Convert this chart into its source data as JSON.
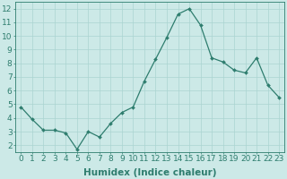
{
  "x": [
    0,
    1,
    2,
    3,
    4,
    5,
    6,
    7,
    8,
    9,
    10,
    11,
    12,
    13,
    14,
    15,
    16,
    17,
    18,
    19,
    20,
    21,
    22,
    23
  ],
  "y": [
    4.8,
    3.9,
    3.1,
    3.1,
    2.9,
    1.7,
    3.0,
    2.6,
    3.6,
    4.4,
    4.8,
    6.7,
    8.3,
    9.9,
    11.6,
    12.0,
    10.8,
    8.4,
    8.1,
    7.5,
    7.3,
    8.4,
    6.4,
    5.5
  ],
  "line_color": "#2e7d6e",
  "marker": "D",
  "marker_size": 2.0,
  "bg_color": "#cce9e7",
  "grid_color": "#aad4d1",
  "xlabel": "Humidex (Indice chaleur)",
  "xlim": [
    -0.5,
    23.5
  ],
  "ylim": [
    1.5,
    12.5
  ],
  "xtick_labels": [
    "0",
    "1",
    "2",
    "3",
    "4",
    "5",
    "6",
    "7",
    "8",
    "9",
    "10",
    "11",
    "12",
    "13",
    "14",
    "15",
    "16",
    "17",
    "18",
    "19",
    "20",
    "21",
    "22",
    "23"
  ],
  "ytick_values": [
    2,
    3,
    4,
    5,
    6,
    7,
    8,
    9,
    10,
    11,
    12
  ],
  "tick_color": "#2e7d6e",
  "label_color": "#2e7d6e",
  "xlabel_fontsize": 7.5,
  "tick_fontsize": 6.5,
  "linewidth": 0.9
}
